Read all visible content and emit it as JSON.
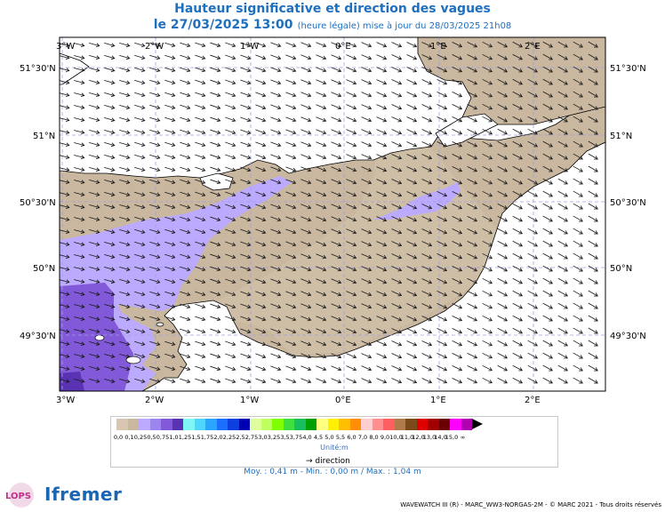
{
  "header": {
    "title": "Hauteur significative et direction des vagues",
    "date_line": "le 27/03/2025 13:00",
    "date_note": "(heure légale) mise à jour du 28/03/2025 21h08"
  },
  "map": {
    "lon_labels": [
      "3°W",
      "2°W",
      "1°W",
      "0°E",
      "1°E",
      "2°E"
    ],
    "lat_labels": [
      "51°30'N",
      "51°N",
      "50°30'N",
      "50°N",
      "49°30'N"
    ],
    "colors": {
      "land": "#ffffff",
      "sea_low": "#c9b89f",
      "sea_mid": "#bcaaff",
      "sea_high": "#8259d9",
      "sea_max": "#5a33b3",
      "grid": "#a0a0e0",
      "arrow": "#1a1a1a"
    }
  },
  "legend": {
    "colors": [
      "#d9c6b0",
      "#c9b89f",
      "#bcaaff",
      "#9d85f0",
      "#8259d9",
      "#5a33b3",
      "#7ff7f7",
      "#4fd6ff",
      "#2ba6ff",
      "#1a6fff",
      "#0b3fdf",
      "#0000b3",
      "#dfff9f",
      "#bfff5f",
      "#7fff00",
      "#3fdf3f",
      "#17bf5f",
      "#00a000",
      "#ffff7f",
      "#ffef00",
      "#ffbf00",
      "#ff8f00",
      "#ffcfcf",
      "#ff8f8f",
      "#ff5f5f",
      "#b07a4a",
      "#7a4a1a",
      "#df0000",
      "#a00000",
      "#6a0000",
      "#ff00ff",
      "#b000b0",
      "#7a007a"
    ],
    "tick_labels": [
      "0,0",
      "0,1",
      "0,25",
      "0,5",
      "0,75",
      "1,0",
      "1,25",
      "1,5",
      "1,75",
      "2,0",
      "2,25",
      "2,5",
      "2,75",
      "3,0",
      "3,25",
      "3,5",
      "3,75",
      "4,0",
      "4,5",
      "5,0",
      "5,5",
      "6,0",
      "7,0",
      "8,0",
      "9,0",
      "10,0",
      "11,0",
      "12,0",
      "13,0",
      "14,0",
      "15,0",
      "∞"
    ],
    "unit": "Unité:m",
    "direction_label": "direction",
    "stats": "Moy. : 0,41 m   -   Min. : 0,00 m / Max. : 1,04 m"
  },
  "footer": {
    "copyright": "WAVEWATCH III (R) - MARC_WW3-NORGAS-2M - © MARC 2021 - Tous droits réservés",
    "logo_lops": "LOPS",
    "logo_ifremer": "Ifremer"
  }
}
